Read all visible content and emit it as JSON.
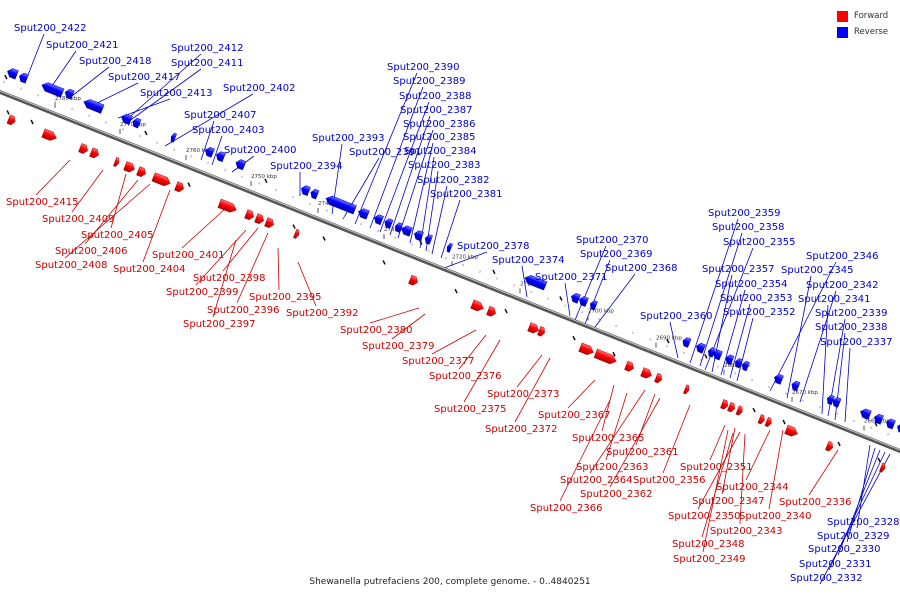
{
  "legend": {
    "forward_label": "Forward",
    "reverse_label": "Reverse",
    "forward_color": "#ff0000",
    "reverse_color": "#0000ff"
  },
  "caption": "Shewanella putrefaciens 200, complete genome. - 0..4840251",
  "scale_labels": [
    "2780 kbp",
    "2770 kbp",
    "2760 kbp",
    "2750 kbp",
    "2740 kbp",
    "2730 kbp",
    "2720 kbp",
    "2710 kbp",
    "2700 kbp",
    "2690 kbp",
    "2680 kbp",
    "2670 kbp",
    "2660 kbp"
  ],
  "reverse_labels": [
    "Sput200_2422",
    "Sput200_2421",
    "Sput200_2418",
    "Sput200_2417",
    "Sput200_2413",
    "Sput200_2412",
    "Sput200_2411",
    "Sput200_2402",
    "Sput200_2407",
    "Sput200_2403",
    "Sput200_2400",
    "Sput200_2394",
    "Sput200_2393",
    "Sput200_2391",
    "Sput200_2390",
    "Sput200_2389",
    "Sput200_2388",
    "Sput200_2387",
    "Sput200_2386",
    "Sput200_2385",
    "Sput200_2384",
    "Sput200_2383",
    "Sput200_2382",
    "Sput200_2381",
    "Sput200_2378",
    "Sput200_2374",
    "Sput200_2371",
    "Sput200_2370",
    "Sput200_2369",
    "Sput200_2368",
    "Sput200_2360",
    "Sput200_2359",
    "Sput200_2358",
    "Sput200_2355",
    "Sput200_2357",
    "Sput200_2354",
    "Sput200_2353",
    "Sput200_2352",
    "Sput200_2346",
    "Sput200_2345",
    "Sput200_2342",
    "Sput200_2341",
    "Sput200_2339",
    "Sput200_2338",
    "Sput200_2337",
    "Sput200_2328",
    "Sput200_2329",
    "Sput200_2330",
    "Sput200_2331",
    "Sput200_2332"
  ],
  "forward_labels": [
    "Sput200_2415",
    "Sput200_2409",
    "Sput200_2405",
    "Sput200_2406",
    "Sput200_2408",
    "Sput200_2404",
    "Sput200_2401",
    "Sput200_2398",
    "Sput200_2399",
    "Sput200_2396",
    "Sput200_2397",
    "Sput200_2395",
    "Sput200_2392",
    "Sput200_2380",
    "Sput200_2379",
    "Sput200_2377",
    "Sput200_2376",
    "Sput200_2375",
    "Sput200_2373",
    "Sput200_2372",
    "Sput200_2367",
    "Sput200_2365",
    "Sput200_2361",
    "Sput200_2363",
    "Sput200_2364",
    "Sput200_2356",
    "Sput200_2362",
    "Sput200_2366",
    "Sput200_2351",
    "Sput200_2344",
    "Sput200_2347",
    "Sput200_2340",
    "Sput200_2350",
    "Sput200_2343",
    "Sput200_2348",
    "Sput200_2349",
    "Sput200_2336"
  ]
}
